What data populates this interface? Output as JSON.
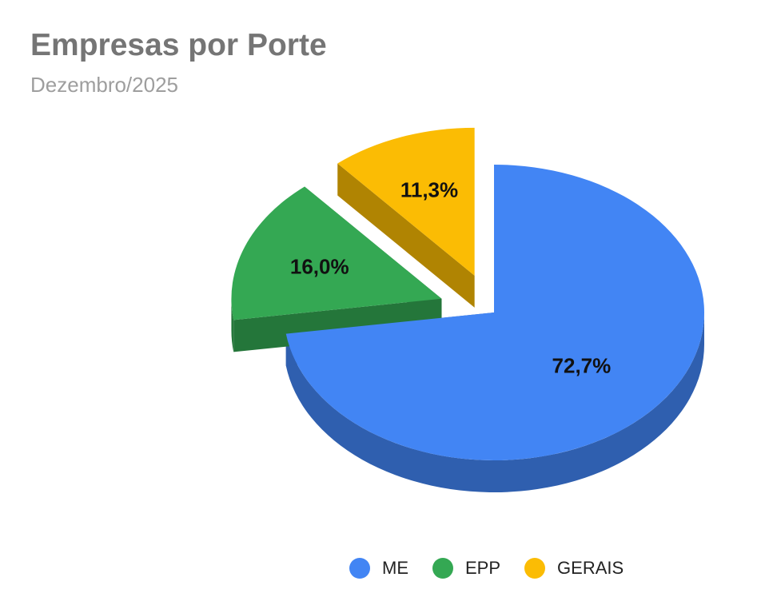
{
  "chart_data": {
    "type": "pie",
    "title": "Empresas por Porte",
    "subtitle": "Dezembro/2025",
    "slices": [
      {
        "name": "ME",
        "value": 72.7,
        "label": "72,7%",
        "color": "#4285f4",
        "side_color": "#2f5faf"
      },
      {
        "name": "EPP",
        "value": 16.0,
        "label": "16,0%",
        "color": "#34a853",
        "side_color": "#24763a"
      },
      {
        "name": "GERAIS",
        "value": 11.3,
        "label": "11,3%",
        "color": "#fbbc04",
        "side_color": "#b08402"
      }
    ],
    "three_d": true,
    "exploded": [
      "EPP",
      "GERAIS"
    ],
    "legend_position": "bottom"
  }
}
